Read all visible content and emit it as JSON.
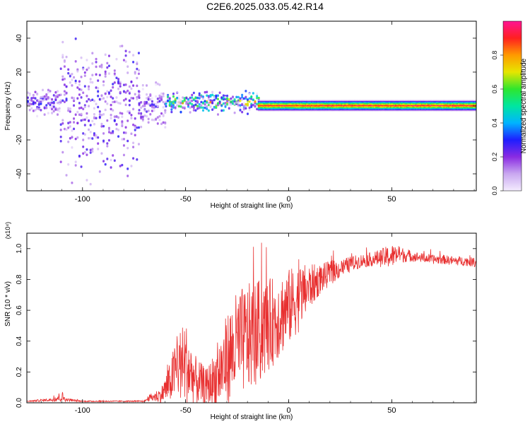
{
  "title": "C2E6.2025.033.05.42.R14",
  "colors": {
    "snr_line": "#e83030",
    "colormap": [
      "#f4ecff",
      "#c9a8f0",
      "#8a2be2",
      "#1e1eff",
      "#00b4ff",
      "#00e6a0",
      "#2ee62e",
      "#e6e600",
      "#ff9a00",
      "#ff2020",
      "#ff1493"
    ]
  },
  "chart_data": [
    {
      "type": "heatmap",
      "title": "C2E6.2025.033.05.42.R14",
      "xlabel": "Height of straight line (km)",
      "ylabel": "Frequency (Hz)",
      "xlim": [
        -127,
        91
      ],
      "ylim": [
        -50,
        50
      ],
      "xticks": [
        -100,
        -50,
        0,
        50
      ],
      "yticks": [
        -40,
        -20,
        0,
        20,
        40
      ],
      "colorbar": {
        "label": "Normalized spectral amplitude",
        "lim": [
          0,
          1
        ],
        "ticks": [
          "0.0",
          "0.2",
          "0.4",
          "0.6",
          "0.8"
        ]
      },
      "segments": [
        {
          "x": [
            -127,
            -111
          ],
          "center_hz": 3,
          "half_width_hz": 12,
          "scatter": "moderate",
          "peak": 0.35
        },
        {
          "x": [
            -111,
            -73
          ],
          "center_hz": 0,
          "half_width_hz": 50,
          "scatter": "heavy",
          "peak": 0.25
        },
        {
          "x": [
            -73,
            -60
          ],
          "center_hz": 0,
          "half_width_hz": 20,
          "scatter": "moderate",
          "peak": 0.3
        },
        {
          "x": [
            -60,
            -15
          ],
          "center_hz": 3,
          "half_width_hz": 9,
          "scatter": "light",
          "peak": 0.85
        },
        {
          "x": [
            -15,
            91
          ],
          "center_hz": 0,
          "half_width_hz": 3,
          "scatter": "none",
          "peak": 1.0
        }
      ]
    },
    {
      "type": "line",
      "xlabel": "Height of straight line (km)",
      "ylabel": "SNR (10 * v/v)",
      "yunit": "(x10⁴)",
      "xlim": [
        -127,
        91
      ],
      "ylim": [
        0,
        1.1
      ],
      "xticks": [
        -100,
        -50,
        0,
        50
      ],
      "yticks": [
        "0.0",
        "0.2",
        "0.4",
        "0.6",
        "0.8",
        "1.0"
      ],
      "series": [
        {
          "x": [
            -127,
            -115,
            -110,
            -108,
            -100,
            -80,
            -70,
            -68,
            -62,
            -58,
            -54,
            -50,
            -48,
            -45,
            -40,
            -35,
            -30,
            -25,
            -20,
            -15,
            -10,
            -5,
            0,
            5,
            10,
            15,
            20,
            25,
            30,
            35,
            40,
            45,
            50,
            52,
            55,
            60,
            65,
            70,
            75,
            80,
            85,
            91
          ],
          "y": [
            0.01,
            0.02,
            0.04,
            0.02,
            0.01,
            0.01,
            0.01,
            0.03,
            0.05,
            0.12,
            0.24,
            0.26,
            0.2,
            0.14,
            0.1,
            0.16,
            0.28,
            0.38,
            0.42,
            0.45,
            0.5,
            0.56,
            0.62,
            0.68,
            0.75,
            0.8,
            0.84,
            0.87,
            0.9,
            0.92,
            0.93,
            0.94,
            0.95,
            0.96,
            0.96,
            0.95,
            0.94,
            0.93,
            0.93,
            0.92,
            0.92,
            0.91
          ],
          "noise": [
            0.005,
            0.01,
            0.04,
            0.01,
            0.004,
            0.004,
            0.005,
            0.02,
            0.05,
            0.12,
            0.22,
            0.28,
            0.22,
            0.16,
            0.12,
            0.2,
            0.3,
            0.35,
            0.35,
            0.35,
            0.3,
            0.28,
            0.25,
            0.22,
            0.15,
            0.1,
            0.08,
            0.06,
            0.05,
            0.045,
            0.045,
            0.06,
            0.08,
            0.06,
            0.05,
            0.035,
            0.03,
            0.03,
            0.03,
            0.03,
            0.03,
            0.03
          ]
        }
      ]
    }
  ]
}
